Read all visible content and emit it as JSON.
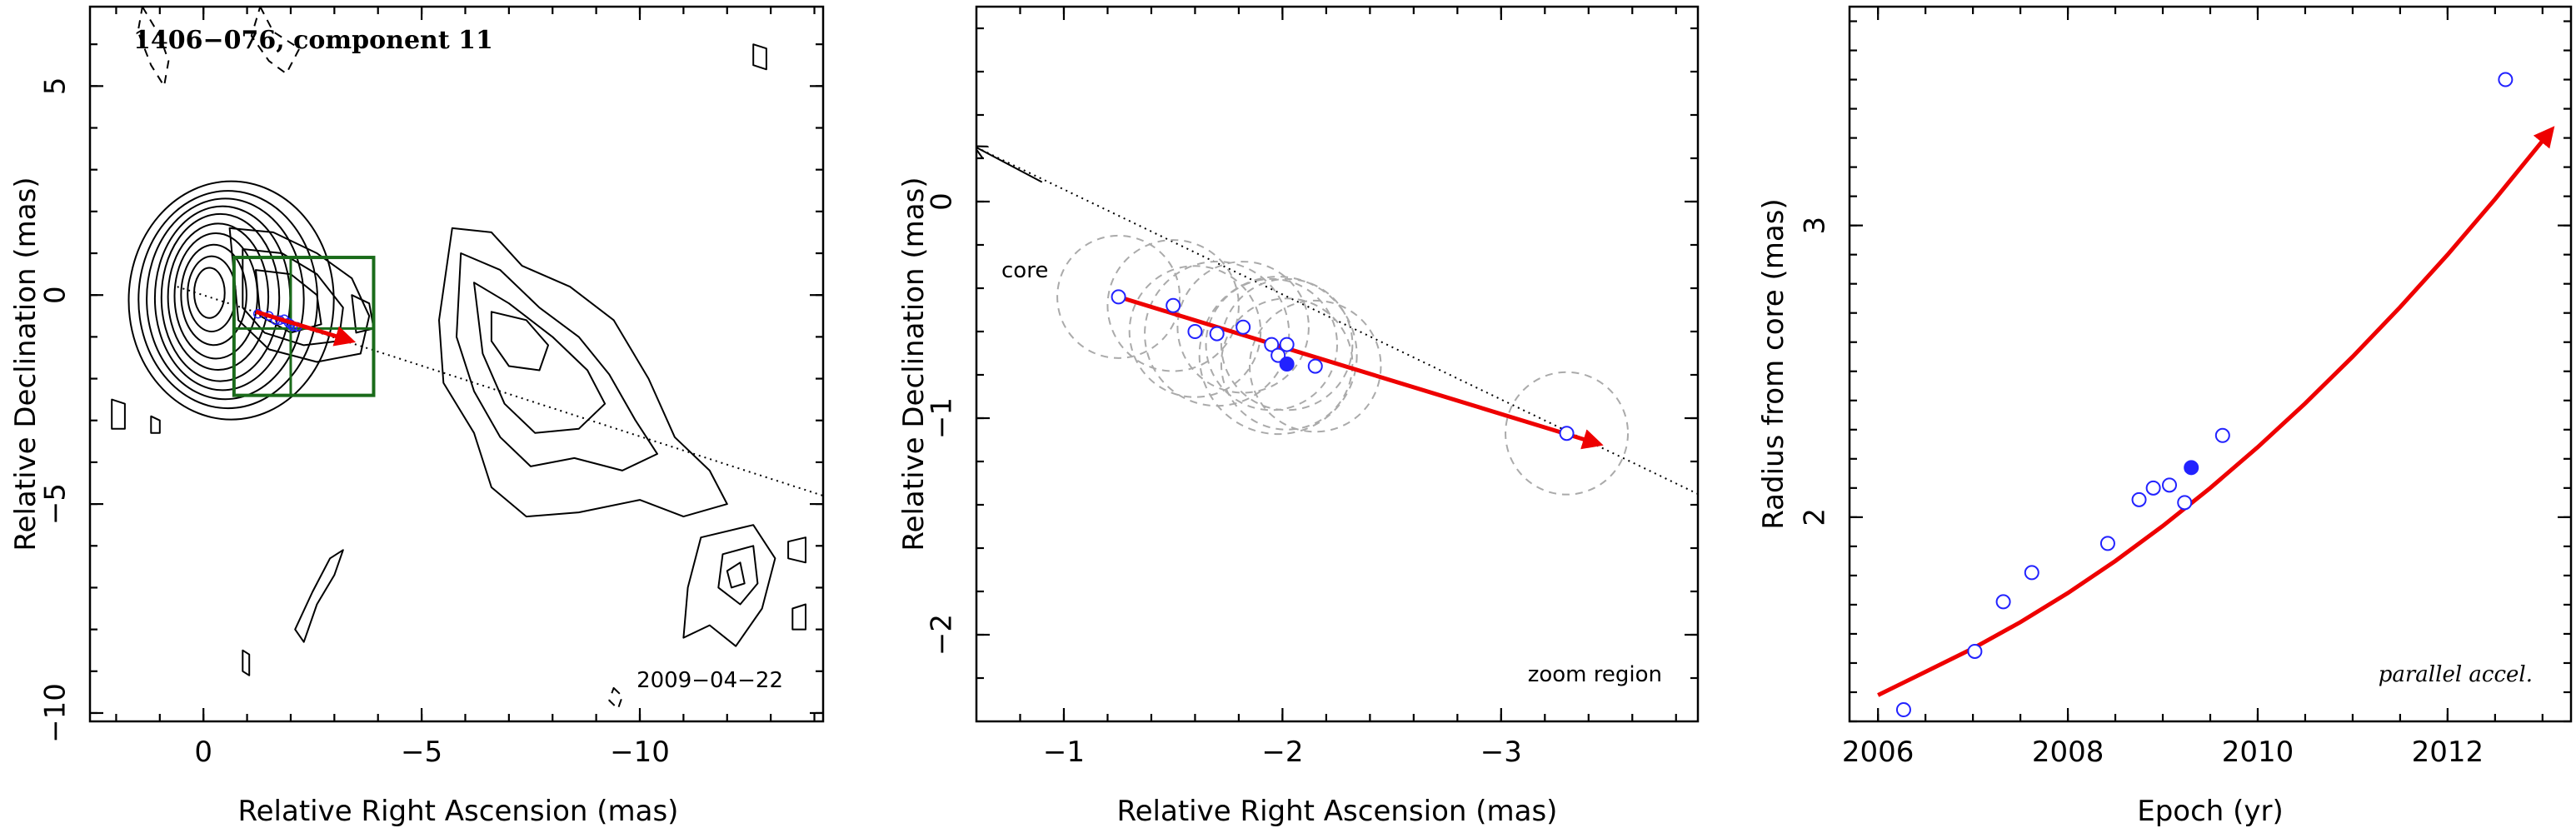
{
  "chart_data": [
    {
      "type": "contour",
      "title": "1406−076, component 11",
      "date_label": "2009−04−22",
      "xlabel": "Relative Right Ascension (mas)",
      "ylabel": "Relative Declination (mas)",
      "xlim": [
        2.6,
        -14.2
      ],
      "ylim": [
        -10.2,
        6.9
      ],
      "xticks": [
        0,
        -5,
        -10
      ],
      "xtick_labels": [
        "0",
        "−5",
        "−10"
      ],
      "yticks": [
        -10,
        -5,
        0,
        5
      ],
      "ytick_labels": [
        "−10",
        "−5",
        "0",
        "5"
      ],
      "core_direction_line": [
        [
          0.6,
          0.2
        ],
        [
          -14.2,
          -4.8
        ]
      ],
      "zoom_box": {
        "x": [
          -0.7,
          -3.9
        ],
        "y": [
          0.9,
          -2.4
        ],
        "gridlines_x": [
          -2.0
        ],
        "gridlines_y": [
          -0.8
        ]
      },
      "motion_arrow": {
        "from": [
          -1.2,
          -0.4
        ],
        "to": [
          -3.4,
          -1.1
        ],
        "color": "#ee0000"
      },
      "positions": [
        {
          "x": -1.25,
          "y": -0.45
        },
        {
          "x": -1.5,
          "y": -0.5
        },
        {
          "x": -1.65,
          "y": -0.6
        },
        {
          "x": -1.75,
          "y": -0.6
        },
        {
          "x": -1.85,
          "y": -0.58
        },
        {
          "x": -1.95,
          "y": -0.66
        },
        {
          "x": -2.0,
          "y": -0.7
        },
        {
          "x": -2.05,
          "y": -0.75
        },
        {
          "x": -2.15,
          "y": -0.76
        }
      ],
      "contours": [
        {
          "cx": -0.05,
          "cy": 0.1,
          "rx": [
            0.35,
            0.55,
            0.75,
            0.95,
            1.15,
            1.35,
            1.55,
            1.8,
            2.05,
            2.35
          ],
          "ry": [
            0.6,
            0.9,
            1.2,
            1.5,
            1.75,
            2.0,
            2.2,
            2.4,
            2.6,
            2.85
          ],
          "dash": false
        },
        {
          "shape": "inner-jet",
          "dash": false
        },
        {
          "shape": "outer-lobe",
          "dash": false
        },
        {
          "shape": "far-knot",
          "dash": false
        },
        {
          "shape": "top-dashed",
          "dash": true
        }
      ]
    },
    {
      "type": "scatter",
      "xlabel": "Relative Right Ascension (mas)",
      "ylabel": "Relative Declination (mas)",
      "corner_label": "zoom region",
      "core_label": "core",
      "xlim": [
        -0.6,
        -3.9
      ],
      "ylim": [
        -2.4,
        0.9
      ],
      "xticks": [
        -1,
        -2,
        -3
      ],
      "xtick_labels": [
        "−1",
        "−2",
        "−3"
      ],
      "yticks": [
        -2,
        -1,
        0
      ],
      "ytick_labels": [
        "−2",
        "−1",
        "0"
      ],
      "core_line": [
        [
          -0.6,
          0.25
        ],
        [
          -3.9,
          -1.35
        ]
      ],
      "motion_arrow": {
        "from": [
          -1.25,
          -0.44
        ],
        "to": [
          -3.45,
          -1.12
        ],
        "color": "#ee0000"
      },
      "points": [
        {
          "x": -1.25,
          "y": -0.44,
          "r": 0.28,
          "filled": false
        },
        {
          "x": -1.5,
          "y": -0.48,
          "r": 0.3,
          "filled": false
        },
        {
          "x": -1.6,
          "y": -0.6,
          "r": 0.3,
          "filled": false
        },
        {
          "x": -1.7,
          "y": -0.61,
          "r": 0.33,
          "filled": false
        },
        {
          "x": -1.82,
          "y": -0.58,
          "r": 0.3,
          "filled": false
        },
        {
          "x": -1.95,
          "y": -0.66,
          "r": 0.3,
          "filled": false
        },
        {
          "x": -1.98,
          "y": -0.71,
          "r": 0.36,
          "filled": false
        },
        {
          "x": -2.02,
          "y": -0.66,
          "r": 0.3,
          "filled": false
        },
        {
          "x": -2.02,
          "y": -0.75,
          "r": 0.3,
          "filled": true
        },
        {
          "x": -2.15,
          "y": -0.76,
          "r": 0.3,
          "filled": false
        },
        {
          "x": -3.3,
          "y": -1.07,
          "r": 0.28,
          "filled": false
        }
      ],
      "marker_color": "#2222ff",
      "error_circle_color": "#aaaaaa"
    },
    {
      "type": "scatter",
      "xlabel": "Epoch (yr)",
      "ylabel": "Radius from core (mas)",
      "corner_label": "parallel accel.",
      "xlim": [
        2005.7,
        2013.3
      ],
      "ylim": [
        1.3,
        3.75
      ],
      "xticks": [
        2006,
        2008,
        2010,
        2012
      ],
      "xtick_labels": [
        "2006",
        "2008",
        "2010",
        "2012"
      ],
      "yticks": [
        2,
        3
      ],
      "ytick_labels": [
        "2",
        "3"
      ],
      "points": [
        {
          "x": 2006.27,
          "y": 1.34,
          "filled": false
        },
        {
          "x": 2007.02,
          "y": 1.54,
          "filled": false
        },
        {
          "x": 2007.32,
          "y": 1.71,
          "filled": false
        },
        {
          "x": 2007.62,
          "y": 1.81,
          "filled": false
        },
        {
          "x": 2008.42,
          "y": 1.91,
          "filled": false
        },
        {
          "x": 2008.75,
          "y": 2.06,
          "filled": false
        },
        {
          "x": 2008.9,
          "y": 2.1,
          "filled": false
        },
        {
          "x": 2009.07,
          "y": 2.11,
          "filled": false
        },
        {
          "x": 2009.23,
          "y": 2.05,
          "filled": false
        },
        {
          "x": 2009.3,
          "y": 2.17,
          "filled": true
        },
        {
          "x": 2009.63,
          "y": 2.28,
          "filled": false
        },
        {
          "x": 2012.61,
          "y": 3.5,
          "filled": false
        }
      ],
      "fit_curve": [
        {
          "x": 2006.0,
          "y": 1.39
        },
        {
          "x": 2006.5,
          "y": 1.47
        },
        {
          "x": 2007.0,
          "y": 1.55
        },
        {
          "x": 2007.5,
          "y": 1.64
        },
        {
          "x": 2008.0,
          "y": 1.74
        },
        {
          "x": 2008.5,
          "y": 1.85
        },
        {
          "x": 2009.0,
          "y": 1.97
        },
        {
          "x": 2009.5,
          "y": 2.1
        },
        {
          "x": 2010.0,
          "y": 2.24
        },
        {
          "x": 2010.5,
          "y": 2.39
        },
        {
          "x": 2011.0,
          "y": 2.55
        },
        {
          "x": 2011.5,
          "y": 2.72
        },
        {
          "x": 2012.0,
          "y": 2.9
        },
        {
          "x": 2012.5,
          "y": 3.09
        },
        {
          "x": 2013.0,
          "y": 3.29
        },
        {
          "x": 2013.1,
          "y": 3.33
        }
      ],
      "fit_color": "#ee0000",
      "marker_color": "#2222ff"
    }
  ]
}
